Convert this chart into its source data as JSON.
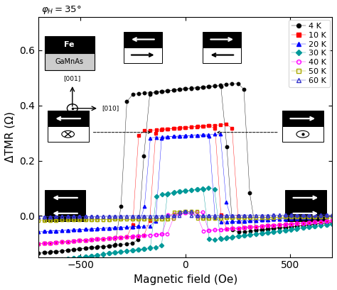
{
  "xlabel": "Magnetic field (Oe)",
  "ylabel": "ΔTMR (Ω)",
  "xlim": [
    -700,
    700
  ],
  "ylim": [
    -0.15,
    0.72
  ],
  "yticks": [
    0.0,
    0.2,
    0.4,
    0.6
  ],
  "xticks": [
    -500,
    0,
    500
  ],
  "series": [
    {
      "label": "4 K",
      "color": "black",
      "marker": "o",
      "filled": true,
      "peak": 0.54,
      "coer1": 200,
      "coer2": 300,
      "base": -0.08,
      "slope": 8e-05
    },
    {
      "label": "10 K",
      "color": "red",
      "marker": "s",
      "filled": true,
      "peak": 0.38,
      "coer1": 160,
      "coer2": 240,
      "base": -0.06,
      "slope": 6e-05
    },
    {
      "label": "20 K",
      "color": "blue",
      "marker": "^",
      "filled": true,
      "peak": 0.32,
      "coer1": 130,
      "coer2": 190,
      "base": -0.03,
      "slope": 4e-05
    },
    {
      "label": "30 K",
      "color": "#009999",
      "marker": "D",
      "filled": true,
      "peak": 0.19,
      "coer1": 100,
      "coer2": 150,
      "base": -0.1,
      "slope": 0.0001
    },
    {
      "label": "40 K",
      "color": "magenta",
      "marker": "o",
      "filled": false,
      "peak": 0.07,
      "coer1": 60,
      "coer2": 90,
      "base": -0.06,
      "slope": 6e-05
    },
    {
      "label": "50 K",
      "color": "#aaaa00",
      "marker": "s",
      "filled": false,
      "peak": 0.025,
      "coer1": 40,
      "coer2": 60,
      "base": -0.01,
      "slope": 1e-05
    },
    {
      "label": "60 K",
      "color": "#3333cc",
      "marker": "^",
      "filled": false,
      "peak": 0.015,
      "coer1": 25,
      "coer2": 40,
      "base": 0.0,
      "slope": 5e-06
    }
  ]
}
